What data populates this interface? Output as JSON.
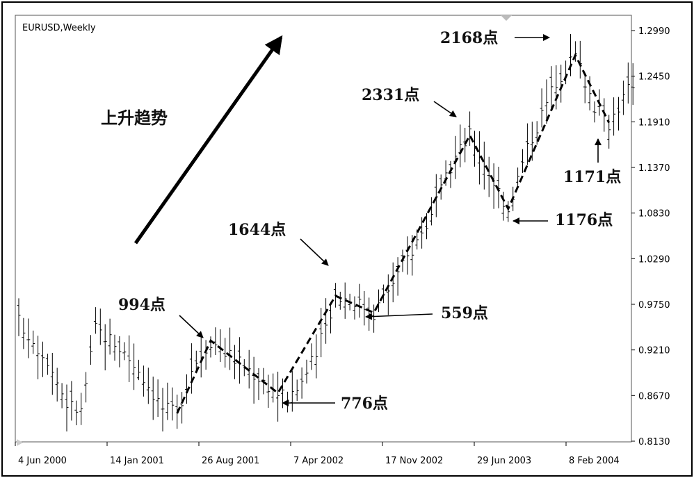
{
  "chart_data": {
    "type": "ohlc",
    "title": "EURUSD,Weekly",
    "trend_label": "上升趋势",
    "ylim": [
      0.813,
      1.299
    ],
    "y_ticks": [
      "1.2990",
      "1.2450",
      "1.1910",
      "1.1370",
      "1.0830",
      "1.0290",
      "0.9750",
      "0.9210",
      "0.8670",
      "0.8130"
    ],
    "x_ticks": [
      "4 Jun 2000",
      "14 Jan 2001",
      "26 Aug 2001",
      "7 Apr 2002",
      "17 Nov 2002",
      "29 Jun 2003",
      "8 Feb 2004"
    ],
    "price_path": [
      [
        0,
        0.955
      ],
      [
        6,
        0.91
      ],
      [
        10,
        0.858
      ],
      [
        13,
        0.848
      ],
      [
        16,
        0.946
      ],
      [
        20,
        0.93
      ],
      [
        25,
        0.898
      ],
      [
        30,
        0.852
      ],
      [
        33,
        0.846
      ],
      [
        36,
        0.9
      ],
      [
        40,
        0.932
      ],
      [
        48,
        0.898
      ],
      [
        54,
        0.87
      ],
      [
        57,
        0.864
      ],
      [
        62,
        0.915
      ],
      [
        66,
        0.985
      ],
      [
        70,
        0.98
      ],
      [
        74,
        0.965
      ],
      [
        80,
        1.02
      ],
      [
        86,
        1.08
      ],
      [
        91,
        1.15
      ],
      [
        94,
        1.175
      ],
      [
        99,
        1.12
      ],
      [
        102,
        1.088
      ],
      [
        106,
        1.16
      ],
      [
        112,
        1.24
      ],
      [
        116,
        1.27
      ],
      [
        120,
        1.21
      ],
      [
        123,
        1.19
      ],
      [
        128,
        1.238
      ]
    ],
    "zigzag": [
      [
        33,
        0.846
      ],
      [
        40,
        0.932
      ],
      [
        54,
        0.87
      ],
      [
        66,
        0.985
      ],
      [
        74,
        0.965
      ],
      [
        94,
        1.175
      ],
      [
        102,
        1.088
      ],
      [
        116,
        1.27
      ],
      [
        123,
        1.19
      ]
    ],
    "annotations": [
      {
        "label": "994点"
      },
      {
        "label": "776点"
      },
      {
        "label": "1644点"
      },
      {
        "label": "559点"
      },
      {
        "label": "2331点"
      },
      {
        "label": "1176点"
      },
      {
        "label": "2168点"
      },
      {
        "label": "1171点"
      }
    ]
  }
}
